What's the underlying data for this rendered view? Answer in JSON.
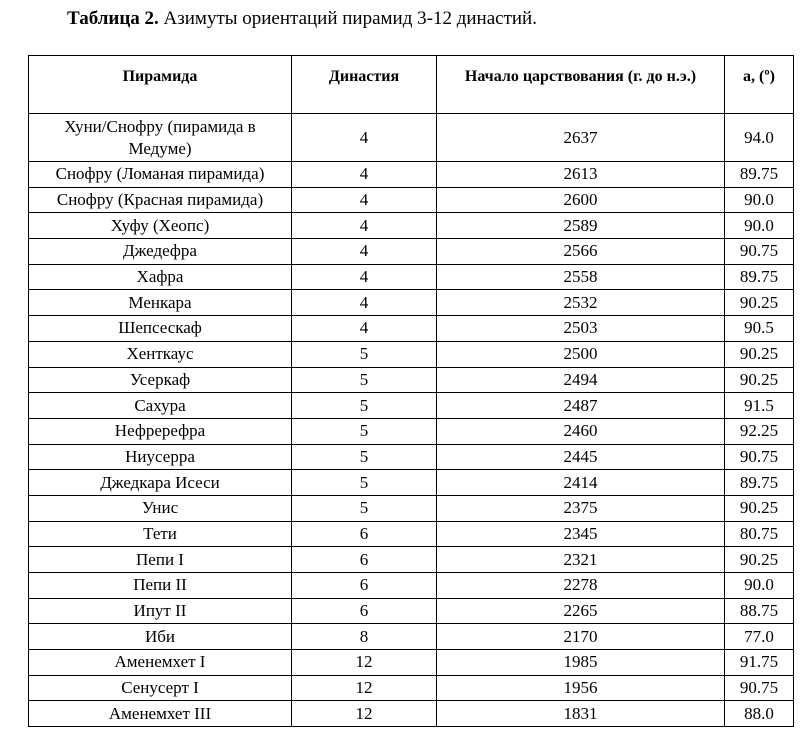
{
  "caption": {
    "label": "Таблица 2.",
    "text": " Азимуты ориентаций пирамид 3-12 династий."
  },
  "table": {
    "headers": [
      "Пирамида",
      "Династия",
      "Начало царствования (г. до н.э.)",
      "a, (º)"
    ],
    "rows": [
      [
        "Хуни/Снофру (пирамида в Медуме)",
        "4",
        "2637",
        "94.0"
      ],
      [
        "Снофру (Ломаная пирамида)",
        "4",
        "2613",
        "89.75"
      ],
      [
        "Снофру (Красная пирамида)",
        "4",
        "2600",
        "90.0"
      ],
      [
        "Хуфу (Хеопс)",
        "4",
        "2589",
        "90.0"
      ],
      [
        "Джедефра",
        "4",
        "2566",
        "90.75"
      ],
      [
        "Хафра",
        "4",
        "2558",
        "89.75"
      ],
      [
        "Менкара",
        "4",
        "2532",
        "90.25"
      ],
      [
        "Шепсескаф",
        "4",
        "2503",
        "90.5"
      ],
      [
        "Хенткаус",
        "5",
        "2500",
        "90.25"
      ],
      [
        "Усеркаф",
        "5",
        "2494",
        "90.25"
      ],
      [
        "Сахура",
        "5",
        "2487",
        "91.5"
      ],
      [
        "Нефререфра",
        "5",
        "2460",
        "92.25"
      ],
      [
        "Ниусерра",
        "5",
        "2445",
        "90.75"
      ],
      [
        "Джедкара Исеси",
        "5",
        "2414",
        "89.75"
      ],
      [
        "Унис",
        "5",
        "2375",
        "90.25"
      ],
      [
        "Тети",
        "6",
        "2345",
        "80.75"
      ],
      [
        "Пепи I",
        "6",
        "2321",
        "90.25"
      ],
      [
        "Пепи II",
        "6",
        "2278",
        "90.0"
      ],
      [
        "Ипут II",
        "6",
        "2265",
        "88.75"
      ],
      [
        "Иби",
        "8",
        "2170",
        "77.0"
      ],
      [
        "Аменемхет I",
        "12",
        "1985",
        "91.75"
      ],
      [
        "Сенусерт I",
        "12",
        "1956",
        "90.75"
      ],
      [
        "Аменемхет III",
        "12",
        "1831",
        "88.0"
      ]
    ]
  }
}
